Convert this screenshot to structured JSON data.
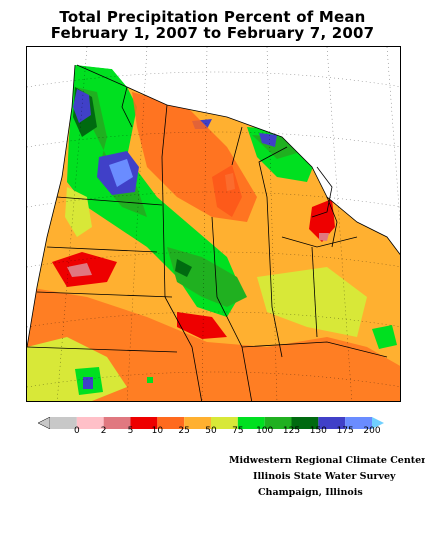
{
  "title": {
    "line1": "Total Precipitation Percent of Mean",
    "line2": "February 1, 2007 to February 7, 2007"
  },
  "legend": {
    "bins": [
      {
        "label": "0",
        "color": "#c8c8c8"
      },
      {
        "label": "2",
        "color": "#ffc0c8"
      },
      {
        "label": "5",
        "color": "#e07880"
      },
      {
        "label": "10",
        "color": "#ee0000"
      },
      {
        "label": "25",
        "color": "#ff6a1e"
      },
      {
        "label": "50",
        "color": "#ffb030"
      },
      {
        "label": "75",
        "color": "#d8e838"
      },
      {
        "label": "100",
        "color": "#00e020"
      },
      {
        "label": "125",
        "color": "#20b020"
      },
      {
        "label": "150",
        "color": "#006a10"
      },
      {
        "label": "175",
        "color": "#4040c8"
      },
      {
        "label": "200",
        "color": "#6a8cff"
      }
    ],
    "overflow_color": "#70d0ff"
  },
  "credits": {
    "line1": "Midwestern Regional Climate Center",
    "line2": "Illinois State Water Survey",
    "line3": "Champaign, Illinois"
  }
}
